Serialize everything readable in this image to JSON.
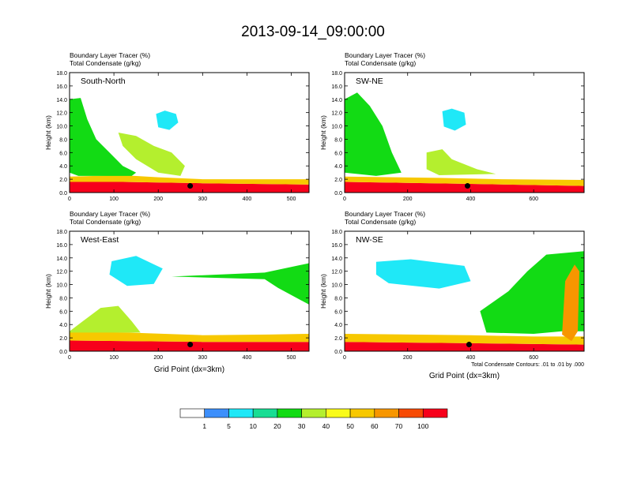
{
  "title": "2013-09-14_09:00:00",
  "chart_data": [
    {
      "type": "heatmap",
      "panel": "South-North",
      "title_lines": [
        "Boundary Layer Tracer   (%)",
        "Total Condensate   (g/kg)"
      ],
      "ylabel": "Height (km)",
      "xlabel": "",
      "xlim": [
        0,
        540
      ],
      "ylim": [
        0,
        18
      ],
      "xticks": [
        0,
        100,
        200,
        300,
        400,
        500
      ],
      "yticks": [
        "0.0",
        "2.0",
        "4.0",
        "6.0",
        "8.0",
        "10.0",
        "12.0",
        "14.0",
        "16.0",
        "18.0"
      ],
      "marker": {
        "x": 272,
        "y": 1.0
      },
      "regions": [
        {
          "name": "surface-layer",
          "level": 100,
          "points": [
            [
              0,
              0
            ],
            [
              540,
              0
            ],
            [
              540,
              1.2
            ],
            [
              300,
              1.4
            ],
            [
              120,
              1.6
            ],
            [
              0,
              1.6
            ]
          ]
        },
        {
          "name": "low-level",
          "level": 50,
          "points": [
            [
              0,
              1.6
            ],
            [
              120,
              1.6
            ],
            [
              300,
              1.4
            ],
            [
              540,
              1.2
            ],
            [
              540,
              2.0
            ],
            [
              300,
              2.0
            ],
            [
              200,
              2.3
            ],
            [
              120,
              2.6
            ],
            [
              0,
              2.4
            ]
          ]
        },
        {
          "name": "upper-cloud",
          "level": 20,
          "points": [
            [
              0,
              14
            ],
            [
              25,
              14.2
            ],
            [
              40,
              11
            ],
            [
              60,
              8
            ],
            [
              90,
              6
            ],
            [
              120,
              4
            ],
            [
              150,
              3
            ],
            [
              140,
              2.5
            ],
            [
              20,
              2.5
            ],
            [
              0,
              3
            ]
          ]
        },
        {
          "name": "mid-plume",
          "level": 30,
          "points": [
            [
              110,
              9
            ],
            [
              150,
              8.5
            ],
            [
              190,
              7
            ],
            [
              230,
              6
            ],
            [
              260,
              4
            ],
            [
              250,
              2.5
            ],
            [
              200,
              3
            ],
            [
              150,
              5
            ],
            [
              120,
              7
            ]
          ]
        },
        {
          "name": "isolated-cloud",
          "level": 5,
          "points": [
            [
              195,
              11.8
            ],
            [
              215,
              12.3
            ],
            [
              240,
              11.8
            ],
            [
              245,
              10.5
            ],
            [
              225,
              9.4
            ],
            [
              200,
              9.8
            ]
          ]
        }
      ]
    },
    {
      "type": "heatmap",
      "panel": "SW-NE",
      "title_lines": [
        "Boundary Layer Tracer   (%)",
        "Total Condensate   (g/kg)"
      ],
      "ylabel": "Height (km)",
      "xlabel": "",
      "xlim": [
        0,
        760
      ],
      "ylim": [
        0,
        18
      ],
      "xticks": [
        0,
        200,
        400,
        600
      ],
      "yticks": [
        "0.0",
        "2.0",
        "4.0",
        "6.0",
        "8.0",
        "10.0",
        "12.0",
        "14.0",
        "16.0",
        "18.0"
      ],
      "marker": {
        "x": 390,
        "y": 1.0
      },
      "regions": [
        {
          "name": "surface-layer",
          "level": 100,
          "points": [
            [
              0,
              0
            ],
            [
              760,
              0
            ],
            [
              760,
              1.0
            ],
            [
              400,
              1.3
            ],
            [
              0,
              1.6
            ]
          ]
        },
        {
          "name": "low-level",
          "level": 50,
          "points": [
            [
              0,
              1.6
            ],
            [
              400,
              1.3
            ],
            [
              760,
              1.0
            ],
            [
              760,
              1.9
            ],
            [
              500,
              2.0
            ],
            [
              300,
              2.2
            ],
            [
              0,
              2.4
            ]
          ]
        },
        {
          "name": "upper-cloud",
          "level": 20,
          "points": [
            [
              0,
              14
            ],
            [
              40,
              15
            ],
            [
              80,
              13
            ],
            [
              120,
              10
            ],
            [
              150,
              6
            ],
            [
              180,
              3
            ],
            [
              100,
              2.5
            ],
            [
              0,
              3
            ]
          ]
        },
        {
          "name": "mid-plume",
          "level": 30,
          "points": [
            [
              260,
              6
            ],
            [
              310,
              6.5
            ],
            [
              340,
              5
            ],
            [
              420,
              3.5
            ],
            [
              480,
              2.8
            ],
            [
              300,
              2.6
            ],
            [
              260,
              3.5
            ]
          ]
        },
        {
          "name": "isolated-cloud",
          "level": 5,
          "points": [
            [
              310,
              12.2
            ],
            [
              340,
              12.6
            ],
            [
              380,
              12
            ],
            [
              385,
              10.2
            ],
            [
              350,
              9.3
            ],
            [
              315,
              9.9
            ]
          ]
        }
      ]
    },
    {
      "type": "heatmap",
      "panel": "West-East",
      "title_lines": [
        "Boundary Layer Tracer   (%)",
        "Total Condensate   (g/kg)"
      ],
      "ylabel": "Height (km)",
      "xlabel": "Grid Point (dx=3km)",
      "xlim": [
        0,
        540
      ],
      "ylim": [
        0,
        18
      ],
      "xticks": [
        0,
        100,
        200,
        300,
        400,
        500
      ],
      "yticks": [
        "0.0",
        "2.0",
        "4.0",
        "6.0",
        "8.0",
        "10.0",
        "12.0",
        "14.0",
        "16.0",
        "18.0"
      ],
      "marker": {
        "x": 272,
        "y": 1.0
      },
      "regions": [
        {
          "name": "surface-layer",
          "level": 100,
          "points": [
            [
              0,
              0
            ],
            [
              540,
              0
            ],
            [
              540,
              1.4
            ],
            [
              300,
              1.4
            ],
            [
              0,
              1.6
            ]
          ]
        },
        {
          "name": "low-level",
          "level": 50,
          "points": [
            [
              0,
              1.6
            ],
            [
              300,
              1.4
            ],
            [
              540,
              1.4
            ],
            [
              540,
              2.6
            ],
            [
              450,
              2.5
            ],
            [
              300,
              2.4
            ],
            [
              130,
              2.8
            ],
            [
              0,
              3.0
            ]
          ]
        },
        {
          "name": "boundary-plume",
          "level": 30,
          "points": [
            [
              0,
              3.0
            ],
            [
              30,
              4.5
            ],
            [
              70,
              6.5
            ],
            [
              110,
              6.8
            ],
            [
              140,
              4.5
            ],
            [
              160,
              2.8
            ],
            [
              0,
              2.8
            ]
          ]
        },
        {
          "name": "upper-cloud",
          "level": 20,
          "points": [
            [
              230,
              11.2
            ],
            [
              440,
              11.8
            ],
            [
              540,
              13.2
            ],
            [
              540,
              7.0
            ],
            [
              470,
              9.5
            ],
            [
              440,
              10.8
            ]
          ]
        },
        {
          "name": "isolated-cloud",
          "level": 5,
          "points": [
            [
              95,
              13.5
            ],
            [
              150,
              14.3
            ],
            [
              210,
              12.4
            ],
            [
              190,
              10.1
            ],
            [
              130,
              9.8
            ],
            [
              90,
              11.5
            ]
          ]
        }
      ]
    },
    {
      "type": "heatmap",
      "panel": "NW-SE",
      "title_lines": [
        "Boundary Layer Tracer   (%)",
        "Total Condensate   (g/kg)"
      ],
      "ylabel": "Height (km)",
      "xlabel": "Grid Point (dx=3km)",
      "xlim": [
        0,
        760
      ],
      "ylim": [
        0,
        18
      ],
      "xticks": [
        0,
        200,
        400,
        600
      ],
      "yticks": [
        "0.0",
        "2.0",
        "4.0",
        "6.0",
        "8.0",
        "10.0",
        "12.0",
        "14.0",
        "16.0",
        "18.0"
      ],
      "marker": {
        "x": 395,
        "y": 1.0
      },
      "contour_note": "Total Condensate Contours: .01 to .01 by .000",
      "regions": [
        {
          "name": "surface-layer",
          "level": 100,
          "points": [
            [
              0,
              0
            ],
            [
              760,
              0
            ],
            [
              760,
              1.0
            ],
            [
              400,
              1.2
            ],
            [
              0,
              1.4
            ]
          ]
        },
        {
          "name": "low-level",
          "level": 50,
          "points": [
            [
              0,
              1.4
            ],
            [
              400,
              1.2
            ],
            [
              760,
              1.0
            ],
            [
              760,
              2.2
            ],
            [
              600,
              2.2
            ],
            [
              400,
              2.4
            ],
            [
              0,
              2.6
            ]
          ]
        },
        {
          "name": "rising-tower",
          "level": 20,
          "points": [
            [
              430,
              6
            ],
            [
              520,
              9
            ],
            [
              580,
              12
            ],
            [
              640,
              14.5
            ],
            [
              760,
              15
            ],
            [
              760,
              3
            ],
            [
              690,
              3
            ],
            [
              600,
              2.6
            ],
            [
              450,
              2.8
            ]
          ]
        },
        {
          "name": "convective-core",
          "level": 60,
          "points": [
            [
              690,
              2.5
            ],
            [
              700,
              10.5
            ],
            [
              730,
              13
            ],
            [
              745,
              12
            ],
            [
              740,
              3
            ],
            [
              720,
              1.5
            ]
          ]
        },
        {
          "name": "isolated-cloud",
          "level": 5,
          "points": [
            [
              100,
              13.4
            ],
            [
              210,
              13.8
            ],
            [
              380,
              12.8
            ],
            [
              400,
              10.5
            ],
            [
              300,
              9.4
            ],
            [
              140,
              10.2
            ],
            [
              100,
              11.5
            ]
          ]
        }
      ]
    }
  ],
  "colorbar": {
    "levels": [
      "1",
      "5",
      "10",
      "20",
      "30",
      "40",
      "50",
      "60",
      "70",
      "100"
    ],
    "colors": [
      "#ffffff",
      "#3d8ffb",
      "#1fe8f7",
      "#18dd93",
      "#12db14",
      "#b4ef2e",
      "#f9fb1a",
      "#f7c800",
      "#f79600",
      "#f74b05",
      "#f7001b"
    ]
  }
}
